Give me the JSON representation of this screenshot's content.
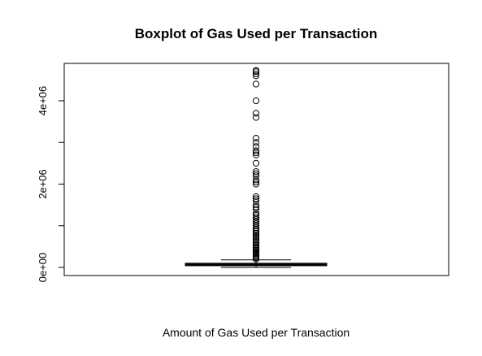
{
  "chart_data": {
    "type": "boxplot",
    "title": "Boxplot of Gas Used per Transaction",
    "xlabel": "Amount of Gas Used per Transaction",
    "ylabel": "",
    "ylim": [
      -200000,
      4900000
    ],
    "y_ticks": [
      0,
      1000000,
      2000000,
      3000000,
      4000000
    ],
    "y_tick_labels": [
      "0e+00",
      "2e+06",
      "4e+06"
    ],
    "y_tick_labeled_values": [
      0,
      2000000,
      4000000
    ],
    "box": {
      "whisker_low": 0,
      "q1": 40000,
      "median": 70000,
      "q3": 100000,
      "whisker_high": 180000
    },
    "outliers": [
      200000,
      230000,
      260000,
      290000,
      320000,
      350000,
      380000,
      410000,
      440000,
      470000,
      500000,
      540000,
      580000,
      620000,
      660000,
      700000,
      740000,
      780000,
      820000,
      860000,
      900000,
      950000,
      1000000,
      1050000,
      1100000,
      1150000,
      1200000,
      1250000,
      1300000,
      1400000,
      1450000,
      1500000,
      1600000,
      1650000,
      1700000,
      2000000,
      2050000,
      2100000,
      2200000,
      2250000,
      2300000,
      2500000,
      2700000,
      2750000,
      2800000,
      2900000,
      3000000,
      3100000,
      3600000,
      3700000,
      4000000,
      4400000,
      4600000,
      4650000,
      4700000,
      4730000
    ],
    "grid": false,
    "legend": "none"
  }
}
